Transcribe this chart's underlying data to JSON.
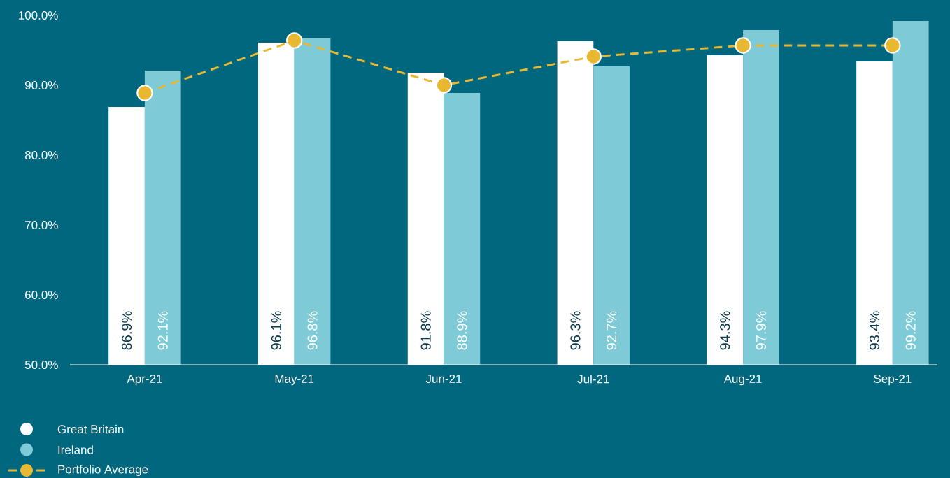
{
  "chart_data": {
    "type": "bar",
    "categories": [
      "Apr-21",
      "May-21",
      "Jun-21",
      "Jul-21",
      "Aug-21",
      "Sep-21"
    ],
    "ylim": [
      50,
      100
    ],
    "yticks": [
      {
        "value": 50,
        "label": "50.0%"
      },
      {
        "value": 60,
        "label": "60.0%"
      },
      {
        "value": 70,
        "label": "70.0%"
      },
      {
        "value": 80,
        "label": "80.0%"
      },
      {
        "value": 90,
        "label": "90.0%"
      },
      {
        "value": 100,
        "label": "100.0%"
      }
    ],
    "legend": "bottom left",
    "grid": false,
    "series": [
      {
        "name": "Great Britain",
        "color": "#ffffff",
        "values": [
          86.9,
          96.1,
          91.8,
          96.3,
          94.3,
          93.4
        ],
        "value_labels": [
          "86.9%",
          "96.1%",
          "91.8%",
          "96.3%",
          "94.3%",
          "93.4%"
        ]
      },
      {
        "name": "Ireland",
        "color": "#7ecad6",
        "values": [
          92.1,
          96.8,
          88.9,
          92.7,
          97.9,
          99.2
        ],
        "value_labels": [
          "92.1%",
          "96.8%",
          "88.9%",
          "92.7%",
          "97.9%",
          "99.2%"
        ]
      },
      {
        "name": "Portfolio Average",
        "type": "line",
        "color": "#e8b830",
        "values": [
          88.9,
          96.4,
          90.0,
          94.1,
          95.7,
          95.7
        ],
        "marker": "circle",
        "line_style": "dashed"
      }
    ]
  }
}
